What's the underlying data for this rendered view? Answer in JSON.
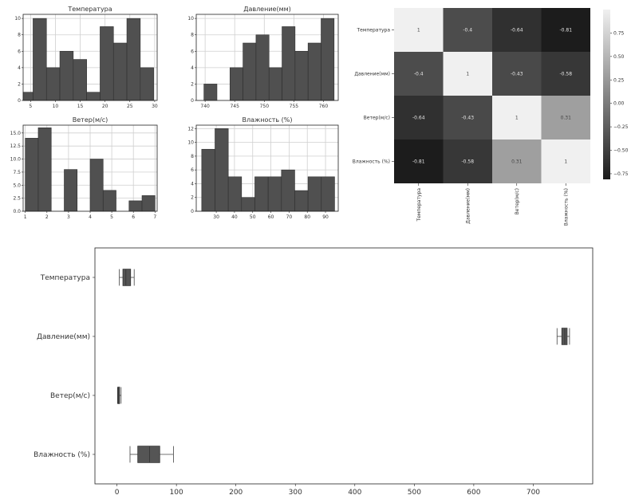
{
  "chart_data": [
    {
      "type": "bar",
      "title": "Температура",
      "xlim": [
        3.5,
        30.5
      ],
      "ylim": [
        0,
        10.5
      ],
      "xticks": [
        5,
        10,
        15,
        20,
        25,
        30
      ],
      "yticks": [
        0,
        2,
        4,
        6,
        8,
        10
      ],
      "bins": [
        [
          3.5,
          5.5,
          1
        ],
        [
          5.5,
          8.2,
          10
        ],
        [
          8.2,
          10.9,
          4
        ],
        [
          10.9,
          13.6,
          6
        ],
        [
          13.6,
          16.3,
          5
        ],
        [
          16.3,
          19.0,
          1
        ],
        [
          19.0,
          21.7,
          9
        ],
        [
          21.7,
          24.4,
          7
        ],
        [
          24.4,
          27.1,
          10
        ],
        [
          27.1,
          29.8,
          4
        ]
      ],
      "grid": true
    },
    {
      "type": "bar",
      "title": "Давление(мм)",
      "xlim": [
        738.5,
        762.5
      ],
      "ylim": [
        0,
        10.5
      ],
      "xticks": [
        740,
        745,
        750,
        755,
        760
      ],
      "yticks": [
        0,
        2,
        4,
        6,
        8,
        10
      ],
      "bins": [
        [
          739.8,
          742.0,
          2
        ],
        [
          742.0,
          744.2,
          0
        ],
        [
          744.2,
          746.4,
          4
        ],
        [
          746.4,
          748.6,
          7
        ],
        [
          748.6,
          750.8,
          8
        ],
        [
          750.8,
          753.0,
          4
        ],
        [
          753.0,
          755.2,
          9
        ],
        [
          755.2,
          757.4,
          6
        ],
        [
          757.4,
          759.6,
          7
        ],
        [
          759.6,
          761.8,
          10
        ]
      ],
      "grid": true
    },
    {
      "type": "bar",
      "title": "Ветер(м/с)",
      "xlim": [
        0.9,
        7.1
      ],
      "ylim": [
        0,
        16.5
      ],
      "xticks": [
        1,
        2,
        3,
        4,
        5,
        6,
        7
      ],
      "xtick_labels": [
        "1",
        "2",
        "3",
        "4",
        "5",
        "6",
        "7"
      ],
      "yticks": [
        0,
        2.5,
        5,
        7.5,
        10,
        12.5,
        15
      ],
      "ytick_labels": [
        "0.0",
        "2.5",
        "5.0",
        "7.5",
        "10.0",
        "12.5",
        "15.0"
      ],
      "bins": [
        [
          1.0,
          1.6,
          14
        ],
        [
          1.6,
          2.2,
          16
        ],
        [
          2.2,
          2.8,
          0
        ],
        [
          2.8,
          3.4,
          8
        ],
        [
          3.4,
          4.0,
          0
        ],
        [
          4.0,
          4.6,
          10
        ],
        [
          4.6,
          5.2,
          4
        ],
        [
          5.2,
          5.8,
          0
        ],
        [
          5.8,
          6.4,
          2
        ],
        [
          6.4,
          7.0,
          3
        ]
      ],
      "grid": true
    },
    {
      "type": "bar",
      "title": "Влажность (%)",
      "xlim": [
        19,
        97
      ],
      "ylim": [
        0,
        12.5
      ],
      "xticks": [
        30,
        40,
        50,
        60,
        70,
        80,
        90
      ],
      "yticks": [
        0,
        2,
        4,
        6,
        8,
        10,
        12
      ],
      "bins": [
        [
          22,
          29.3,
          9
        ],
        [
          29.3,
          36.6,
          12
        ],
        [
          36.6,
          43.9,
          5
        ],
        [
          43.9,
          51.2,
          2
        ],
        [
          51.2,
          58.5,
          5
        ],
        [
          58.5,
          65.8,
          5
        ],
        [
          65.8,
          73.1,
          6
        ],
        [
          73.1,
          80.4,
          3
        ],
        [
          80.4,
          87.7,
          5
        ],
        [
          87.7,
          95,
          5
        ]
      ],
      "grid": true
    },
    {
      "type": "heatmap",
      "labels": [
        "Температура",
        "Давление(мм)",
        "Ветер(м/с)",
        "Влажность (%)"
      ],
      "values": [
        [
          1,
          -0.4,
          -0.64,
          -0.81
        ],
        [
          -0.4,
          1,
          -0.43,
          -0.58
        ],
        [
          -0.64,
          -0.43,
          1,
          0.31
        ],
        [
          -0.81,
          -0.58,
          0.31,
          1
        ]
      ],
      "annotations": [
        [
          "1",
          "-0.4",
          "-0.64",
          "-0.81"
        ],
        [
          "-0.4",
          "1",
          "-0.43",
          "-0.58"
        ],
        [
          "-0.64",
          "-0.43",
          "1",
          "0.31"
        ],
        [
          "-0.81",
          "-0.58",
          "0.31",
          "1"
        ]
      ],
      "vmin": -0.81,
      "vmax": 1,
      "colorbar_ticks": [
        0.75,
        0.5,
        0.25,
        0,
        -0.25,
        -0.5,
        -0.75
      ],
      "colorbar_labels": [
        "0.75",
        "0.50",
        "0.25",
        "0.00",
        "−0.25",
        "−0.50",
        "−0.75"
      ],
      "colormap": "gray"
    },
    {
      "type": "boxplot",
      "orientation": "horizontal",
      "categories": [
        "Температура",
        "Давление(мм)",
        "Ветер(м/с)",
        "Влажность (%)"
      ],
      "stats": [
        {
          "whisker_low": 4,
          "q1": 10,
          "median": 15,
          "q3": 23,
          "whisker_high": 29
        },
        {
          "whisker_low": 740,
          "q1": 748,
          "median": 753,
          "q3": 757,
          "whisker_high": 761
        },
        {
          "whisker_low": 1,
          "q1": 1.5,
          "median": 3,
          "q3": 4.5,
          "whisker_high": 7
        },
        {
          "whisker_low": 22,
          "q1": 35,
          "median": 55,
          "q3": 72,
          "whisker_high": 95
        }
      ],
      "xlim": [
        -37,
        800
      ],
      "xticks": [
        0,
        100,
        200,
        300,
        400,
        500,
        600,
        700
      ]
    }
  ],
  "colors": {
    "bar_fill": "#505050",
    "bar_edge": "#2e2e2e",
    "grid": "#cfcfcf",
    "axes": "#222222",
    "box_fill": "#555555"
  }
}
